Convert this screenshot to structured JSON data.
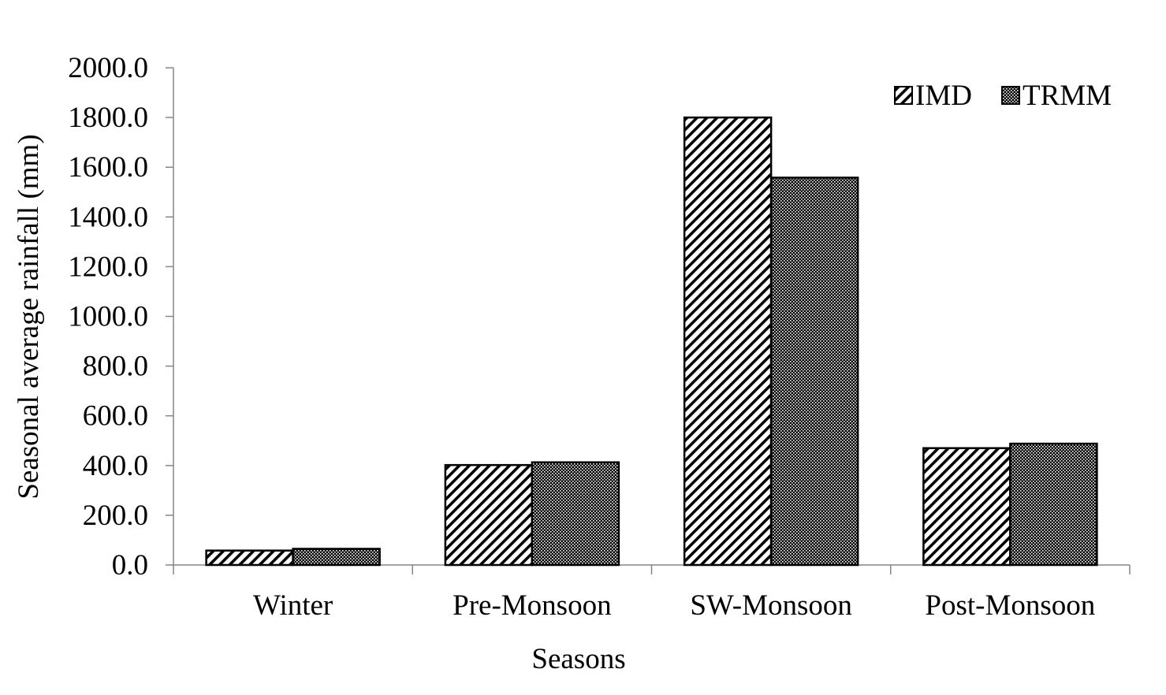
{
  "chart_data": {
    "type": "bar",
    "title": "",
    "xlabel": "Seasons",
    "ylabel": "Seasonal average rainfall (mm)",
    "ylim": [
      0,
      2000
    ],
    "yticks": [
      "0.0",
      "200.0",
      "400.0",
      "600.0",
      "800.0",
      "1000.0",
      "1200.0",
      "1400.0",
      "1600.0",
      "1800.0",
      "2000.0"
    ],
    "categories": [
      "Winter",
      "Pre-Monsoon",
      "SW-Monsoon",
      "Post-Monsoon"
    ],
    "series": [
      {
        "name": "IMD",
        "values": [
          58,
          402,
          1800,
          470
        ],
        "pattern": "diagonal-hatch",
        "color": "#000000"
      },
      {
        "name": "TRMM",
        "values": [
          65,
          413,
          1558,
          488
        ],
        "pattern": "dense-dots",
        "color": "#000000"
      }
    ],
    "legend_position": "top-right",
    "grid": false
  }
}
